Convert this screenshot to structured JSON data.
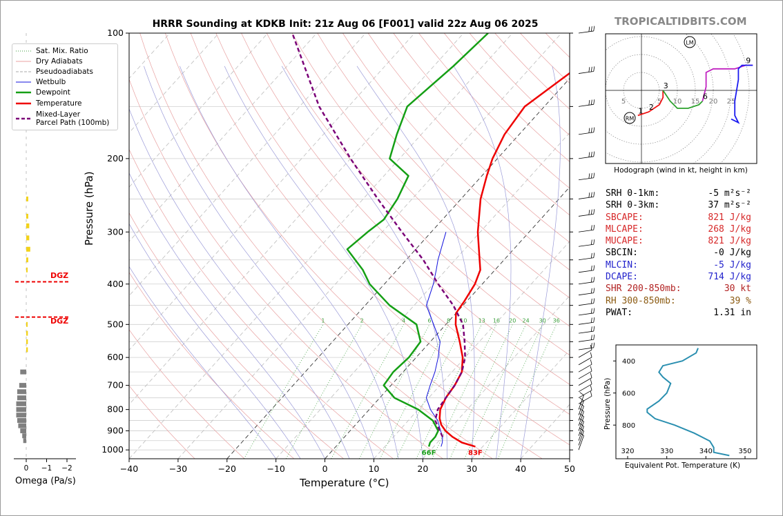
{
  "title": "HRRR Sounding at KDKB Init: 21z Aug 06 [F001] valid 22z Aug 06 2025",
  "watermark": "TROPICALTIDBITS.COM",
  "legend": {
    "sat_mix_ratio": "Sat. Mix. Ratio",
    "dry_adiabats": "Dry Adiabats",
    "pseudoadiabats": "Pseudoadiabats",
    "wetbulb": "Wetbulb",
    "dewpoint": "Dewpoint",
    "temperature": "Temperature",
    "parcel_l1": "Mixed-Layer",
    "parcel_l2": "Parcel Path (100mb)"
  },
  "colors": {
    "temperature": "#ee0000",
    "dewpoint": "#159f15",
    "wetbulb": "#1010dd",
    "parcel": "#7a0077",
    "dry_adiabat": "#e8a0a0",
    "pseudoadiabat": "#9a9ad8",
    "mixing_ratio": "#3c9f3c",
    "dgz": "#ee0000",
    "theta_e": "#2a8fb0",
    "omega_pos": "#f2d21a",
    "omega_neg": "#808080"
  },
  "skewt": {
    "xlabel": "Temperature (°C)",
    "ylabel": "Pressure (hPa)",
    "xlim": [
      -40,
      50
    ],
    "ylim": [
      1050,
      100
    ],
    "xticks": [
      "−40",
      "−30",
      "−20",
      "−10",
      "0",
      "10",
      "20",
      "30",
      "40",
      "50"
    ],
    "yticks": [
      "100",
      "200",
      "300",
      "400",
      "500",
      "600",
      "700",
      "800",
      "900",
      "1000"
    ],
    "surface_dewpoint_label": "66F",
    "surface_temp_label": "83F",
    "mixing_ratio_labels": [
      "1",
      "2",
      "4",
      "6",
      "8",
      "10",
      "13",
      "16",
      "20",
      "24",
      "30",
      "36"
    ]
  },
  "chart_data": {
    "type": "line",
    "title": "HRRR Sounding at KDKB Init: 21z Aug 06 [F001] valid 22z Aug 06 2025",
    "xlabel": "Temperature (°C)",
    "ylabel": "Pressure (hPa)",
    "xlim": [
      -40,
      50
    ],
    "ylim": [
      1050,
      100
    ],
    "series": [
      {
        "name": "Temperature",
        "points": [
          [
            982,
            28.5
          ],
          [
            960,
            25
          ],
          [
            930,
            22
          ],
          [
            900,
            19.5
          ],
          [
            870,
            17.5
          ],
          [
            840,
            16
          ],
          [
            800,
            14.5
          ],
          [
            750,
            13.5
          ],
          [
            700,
            13
          ],
          [
            650,
            12
          ],
          [
            600,
            9.5
          ],
          [
            550,
            6
          ],
          [
            500,
            2
          ],
          [
            470,
            0
          ],
          [
            440,
            -0.5
          ],
          [
            400,
            -1.5
          ],
          [
            370,
            -3
          ],
          [
            350,
            -5
          ],
          [
            300,
            -10.5
          ],
          [
            250,
            -16
          ],
          [
            220,
            -19
          ],
          [
            200,
            -21
          ],
          [
            175,
            -23
          ],
          [
            150,
            -24
          ],
          [
            125,
            -21
          ],
          [
            100,
            -18
          ]
        ]
      },
      {
        "name": "Dewpoint",
        "points": [
          [
            982,
            19
          ],
          [
            960,
            18.5
          ],
          [
            930,
            18.5
          ],
          [
            900,
            18
          ],
          [
            850,
            15
          ],
          [
            800,
            10
          ],
          [
            750,
            3
          ],
          [
            700,
            -1.5
          ],
          [
            650,
            -2
          ],
          [
            600,
            -1.5
          ],
          [
            550,
            -2
          ],
          [
            500,
            -6
          ],
          [
            450,
            -15
          ],
          [
            400,
            -23
          ],
          [
            370,
            -27
          ],
          [
            330,
            -34
          ],
          [
            300,
            -33
          ],
          [
            280,
            -32
          ],
          [
            250,
            -33
          ],
          [
            220,
            -35
          ],
          [
            200,
            -42
          ],
          [
            175,
            -45
          ],
          [
            150,
            -48
          ],
          [
            120,
            -46
          ],
          [
            100,
            -45
          ]
        ]
      },
      {
        "name": "Wetbulb",
        "points": [
          [
            982,
            21.5
          ],
          [
            960,
            21
          ],
          [
            930,
            20
          ],
          [
            900,
            18.5
          ],
          [
            850,
            16
          ],
          [
            800,
            12.5
          ],
          [
            750,
            9.5
          ],
          [
            700,
            8
          ],
          [
            650,
            6.5
          ],
          [
            600,
            4.5
          ],
          [
            550,
            2
          ],
          [
            500,
            -2.5
          ],
          [
            450,
            -7.5
          ],
          [
            400,
            -10
          ],
          [
            370,
            -12
          ],
          [
            350,
            -13.5
          ],
          [
            300,
            -17
          ]
        ]
      },
      {
        "name": "Mixed-Layer Parcel Path (100mb)",
        "points": [
          [
            930,
            20
          ],
          [
            850,
            15.5
          ],
          [
            800,
            14
          ],
          [
            750,
            13.5
          ],
          [
            700,
            13
          ],
          [
            650,
            12
          ],
          [
            600,
            10
          ],
          [
            550,
            7
          ],
          [
            500,
            3.5
          ],
          [
            450,
            -2
          ],
          [
            400,
            -9
          ],
          [
            350,
            -16.5
          ],
          [
            300,
            -26
          ],
          [
            250,
            -37
          ],
          [
            200,
            -50
          ],
          [
            150,
            -66
          ],
          [
            100,
            -85
          ]
        ]
      }
    ],
    "dgz": [
      {
        "label": "DGZ",
        "pressure": 395
      },
      {
        "label": "DGZ",
        "pressure": 480
      }
    ]
  },
  "hodograph": {
    "label": "Hodograph (wind in kt, height in km)",
    "ring_labels": [
      "5",
      "5",
      "10",
      "15",
      "20",
      "25"
    ],
    "height_labels": [
      "1",
      "2",
      "3",
      "6",
      "9"
    ],
    "lm": "LM",
    "rm": "RM"
  },
  "params": [
    {
      "label": "SRH 0-1km:",
      "value": "-5 m²s⁻²",
      "color": "#000000"
    },
    {
      "label": "SRH 0-3km:",
      "value": "37 m²s⁻²",
      "color": "#000000"
    },
    {
      "label": "SBCAPE:",
      "value": "821 J/kg",
      "color": "#d62728"
    },
    {
      "label": "MLCAPE:",
      "value": "268 J/kg",
      "color": "#d62728"
    },
    {
      "label": "MUCAPE:",
      "value": "821 J/kg",
      "color": "#d62728"
    },
    {
      "label": "SBCIN:",
      "value": "-0 J/kg",
      "color": "#000000"
    },
    {
      "label": "MLCIN:",
      "value": "-5 J/kg",
      "color": "#2222cc"
    },
    {
      "label": "DCAPE:",
      "value": "714 J/kg",
      "color": "#2222cc"
    },
    {
      "label": "SHR 200-850mb:",
      "value": "30 kt",
      "color": "#b22222"
    },
    {
      "label": "RH 300-850mb:",
      "value": "39 %",
      "color": "#8b5a10"
    },
    {
      "label": "PWAT:",
      "value": "1.31 in",
      "color": "#000000"
    }
  ],
  "theta_e": {
    "xlabel": "Equivalent Pot. Temperature (K)",
    "ylabel": "Pressure (hPa)",
    "xticks": [
      "320",
      "330",
      "340",
      "350"
    ],
    "yticks": [
      "400",
      "600",
      "800"
    ],
    "chart_data": {
      "type": "line",
      "points": [
        [
          320,
          338
        ],
        [
          350,
          337.5
        ],
        [
          400,
          334
        ],
        [
          430,
          329
        ],
        [
          470,
          328
        ],
        [
          500,
          329
        ],
        [
          540,
          331
        ],
        [
          600,
          330
        ],
        [
          650,
          328
        ],
        [
          700,
          325
        ],
        [
          720,
          325
        ],
        [
          760,
          327
        ],
        [
          800,
          332
        ],
        [
          850,
          337
        ],
        [
          900,
          341
        ],
        [
          940,
          342
        ],
        [
          970,
          342
        ],
        [
          990,
          346
        ]
      ]
    }
  },
  "omega": {
    "xlabel": "Omega (Pa/s)",
    "xticks": [
      "0",
      "−1",
      "−2"
    ],
    "chart_data": {
      "type": "bar",
      "points": [
        [
          250,
          0.1
        ],
        [
          275,
          0.1
        ],
        [
          290,
          0.15
        ],
        [
          310,
          0.15
        ],
        [
          330,
          0.2
        ],
        [
          350,
          0.1
        ],
        [
          370,
          0.05
        ],
        [
          500,
          0.05
        ],
        [
          525,
          0.08
        ],
        [
          550,
          0.08
        ],
        [
          575,
          0.08
        ],
        [
          650,
          -0.3
        ],
        [
          700,
          -0.35
        ],
        [
          725,
          -0.45
        ],
        [
          750,
          -0.45
        ],
        [
          775,
          -0.5
        ],
        [
          800,
          -0.5
        ],
        [
          825,
          -0.5
        ],
        [
          850,
          -0.45
        ],
        [
          875,
          -0.4
        ],
        [
          900,
          -0.3
        ],
        [
          925,
          -0.2
        ],
        [
          950,
          -0.15
        ]
      ]
    }
  }
}
